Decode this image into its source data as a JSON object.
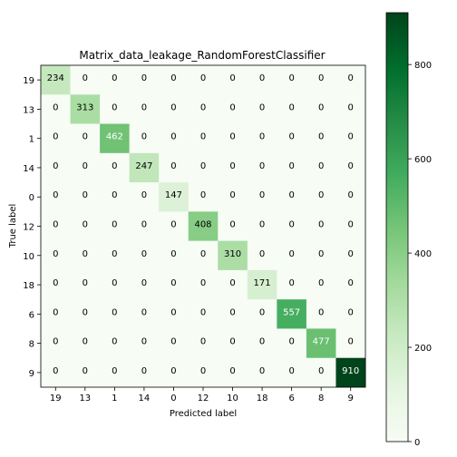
{
  "chart_data": {
    "type": "heatmap",
    "title": "Matrix_data_leakage_RandomForestClassifier",
    "xlabel": "Predicted label",
    "ylabel": "True label",
    "x_categories": [
      "19",
      "13",
      "1",
      "14",
      "0",
      "12",
      "10",
      "18",
      "6",
      "8",
      "9"
    ],
    "y_categories": [
      "19",
      "13",
      "1",
      "14",
      "0",
      "12",
      "10",
      "18",
      "6",
      "8",
      "9"
    ],
    "matrix": [
      [
        234,
        0,
        0,
        0,
        0,
        0,
        0,
        0,
        0,
        0,
        0
      ],
      [
        0,
        313,
        0,
        0,
        0,
        0,
        0,
        0,
        0,
        0,
        0
      ],
      [
        0,
        0,
        462,
        0,
        0,
        0,
        0,
        0,
        0,
        0,
        0
      ],
      [
        0,
        0,
        0,
        247,
        0,
        0,
        0,
        0,
        0,
        0,
        0
      ],
      [
        0,
        0,
        0,
        0,
        147,
        0,
        0,
        0,
        0,
        0,
        0
      ],
      [
        0,
        0,
        0,
        0,
        0,
        408,
        0,
        0,
        0,
        0,
        0
      ],
      [
        0,
        0,
        0,
        0,
        0,
        0,
        310,
        0,
        0,
        0,
        0
      ],
      [
        0,
        0,
        0,
        0,
        0,
        0,
        0,
        171,
        0,
        0,
        0
      ],
      [
        0,
        0,
        0,
        0,
        0,
        0,
        0,
        0,
        557,
        0,
        0
      ],
      [
        0,
        0,
        0,
        0,
        0,
        0,
        0,
        0,
        0,
        477,
        0
      ],
      [
        0,
        0,
        0,
        0,
        0,
        0,
        0,
        0,
        0,
        0,
        910
      ]
    ],
    "colormap": "Greens",
    "colorbar_range": [
      0,
      910
    ],
    "colorbar_ticks": [
      0,
      200,
      400,
      600,
      800
    ]
  }
}
